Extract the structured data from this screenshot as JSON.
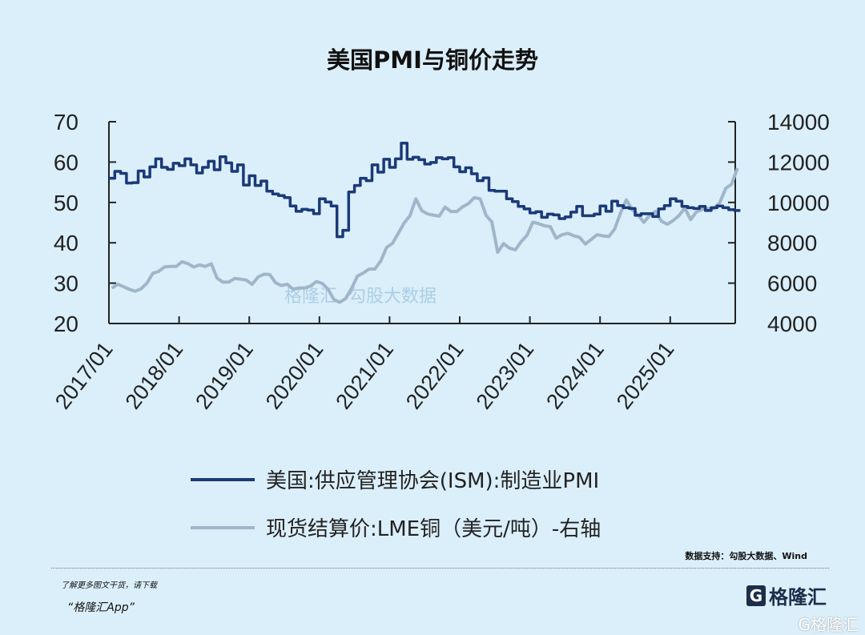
{
  "chart_data": {
    "type": "line",
    "title": "美国PMI与铜价走势",
    "x_start": "2017/01",
    "frequency": "monthly",
    "x_tick_labels": [
      "2017/01",
      "2018/01",
      "2019/01",
      "2020/01",
      "2021/01",
      "2022/01",
      "2023/01",
      "2024/01",
      "2025/01"
    ],
    "y_left": {
      "range": [
        20,
        70
      ],
      "ticks": [
        "20",
        "30",
        "40",
        "50",
        "60",
        "70"
      ]
    },
    "y_right": {
      "range": [
        4000,
        14000
      ],
      "ticks": [
        "4000",
        "6000",
        "8000",
        "10000",
        "12000",
        "14000"
      ]
    },
    "series": [
      {
        "name": "美国:供应管理协会(ISM):制造业PMI",
        "axis": "left",
        "color": "#1b3a78",
        "values": [
          56,
          57.7,
          57.2,
          54.8,
          54.9,
          57.8,
          56.3,
          58.8,
          60.8,
          58.7,
          58.2,
          59.7,
          59.1,
          60.8,
          59.3,
          57.3,
          58.7,
          60.2,
          58.1,
          61.3,
          59.8,
          57.7,
          59.3,
          54.3,
          56.6,
          54.2,
          55.3,
          52.8,
          52.1,
          51.7,
          51.2,
          49.1,
          47.8,
          48.3,
          48.1,
          47.2,
          50.9,
          50.1,
          49.1,
          41.5,
          43.1,
          52.6,
          54.2,
          56,
          55.4,
          59.3,
          57.5,
          60.7,
          58.7,
          60.8,
          64.7,
          60.7,
          61.2,
          60.6,
          59.5,
          59.9,
          61.1,
          60.8,
          61.1,
          58.8,
          57.6,
          58.6,
          57.1,
          55.4,
          56.1,
          53,
          52.8,
          52.8,
          50.9,
          50.2,
          49,
          48.4,
          47.4,
          47.7,
          46.3,
          47.1,
          46.9,
          46,
          46.4,
          47.6,
          49,
          46.7,
          46.7,
          47.1,
          49.1,
          47.8,
          50.3,
          49.2,
          48.7,
          48.5,
          46.8,
          47.2,
          47.2,
          46.5,
          48.4,
          49.2,
          50.9,
          50.3,
          49,
          48.7,
          48.5,
          49,
          48,
          48.7,
          49.1,
          48.7,
          48.2,
          48
        ]
      },
      {
        "name": "现货结算价:LME铜（美元/吨）-右轴",
        "axis": "right",
        "color": "#9fb6ca",
        "values": [
          5750,
          5950,
          5820,
          5690,
          5600,
          5720,
          6000,
          6490,
          6580,
          6800,
          6830,
          6830,
          7060,
          6970,
          6800,
          6900,
          6830,
          6960,
          6250,
          6050,
          6050,
          6230,
          6200,
          6150,
          5940,
          6300,
          6440,
          6430,
          6020,
          5880,
          5950,
          5700,
          5760,
          5760,
          5860,
          6080,
          5990,
          5690,
          5180,
          5050,
          5240,
          5730,
          6350,
          6500,
          6700,
          6700,
          7100,
          7770,
          7970,
          8470,
          8980,
          9350,
          10180,
          9600,
          9430,
          9370,
          9320,
          9770,
          9550,
          9550,
          9780,
          9940,
          10240,
          10180,
          9360,
          9030,
          7530,
          7960,
          7740,
          7650,
          8050,
          8370,
          9020,
          8950,
          8840,
          8800,
          8230,
          8400,
          8470,
          8350,
          8270,
          7940,
          8170,
          8400,
          8340,
          8310,
          8680,
          9480,
          10130,
          9640,
          9380,
          9010,
          9370,
          9550,
          9070,
          8920,
          9100,
          9350,
          9720,
          9150,
          9530,
          9660,
          9700,
          9700,
          10000,
          10700,
          10900,
          11700
        ]
      }
    ],
    "legend_placement": "bottom",
    "grid": false
  },
  "legend": {
    "pmi": "美国:供应管理协会(ISM):制造业PMI",
    "copper": "现货结算价:LME铜（美元/吨）-右轴"
  },
  "watermark": {
    "brand": "格隆汇",
    "partner": "勾股大数据"
  },
  "footer": {
    "source": "数据支持：勾股大数据、Wind",
    "promo_line1": "了解更多图文干货，请下载",
    "promo_line2": "“格隆汇App”",
    "logo_text": "格隆汇",
    "logo_letter": "G",
    "corner_logo": "G格隆汇"
  }
}
